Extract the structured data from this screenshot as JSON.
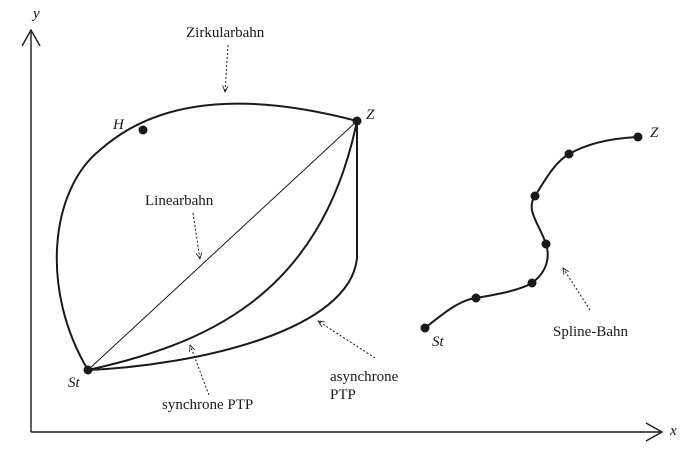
{
  "axes": {
    "x_label": "x",
    "y_label": "y"
  },
  "points": {
    "start_left": "St",
    "goal_left": "Z",
    "aux_left": "H",
    "start_right": "St",
    "goal_right": "Z"
  },
  "paths": {
    "circular": "Zirkularbahn",
    "linear": "Linearbahn",
    "sync_ptp": "synchrone PTP",
    "async_ptp_line1": "asynchrone",
    "async_ptp_line2": "PTP",
    "spline": "Spline-Bahn"
  },
  "colors": {
    "ink": "#1a1a1a",
    "background": "#ffffff"
  }
}
